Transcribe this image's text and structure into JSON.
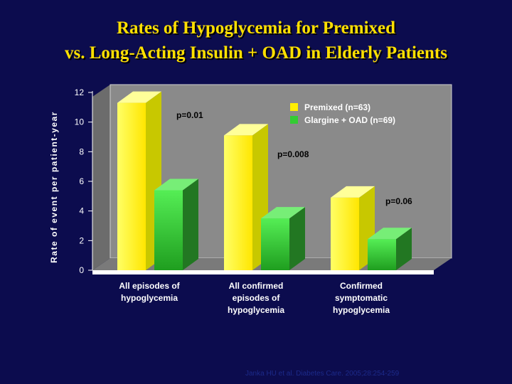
{
  "title_line1": "Rates of Hypoglycemia for Premixed",
  "title_line2": "vs. Long-Acting Insulin + OAD in Elderly Patients",
  "footnote": "Janka HU et al. Diabetes Care. 2005;28:254-259",
  "colors": {
    "background": "#0c0c4e",
    "title": "#ffe000",
    "plot_panel": "#8a8a8a",
    "premixed": "#ffee00",
    "glargine": "#33cc33"
  },
  "chart_data": {
    "type": "bar",
    "ylabel": "Rate of event per patient-year",
    "ylim": [
      0,
      12
    ],
    "yticks": [
      0,
      2,
      4,
      6,
      8,
      10,
      12
    ],
    "categories": [
      [
        "All episodes of",
        "hypoglycemia"
      ],
      [
        "All confirmed",
        "episodes of",
        "hypoglycemia"
      ],
      [
        "Confirmed",
        "symptomatic",
        "hypoglycemia"
      ]
    ],
    "series": [
      {
        "name": "Premixed (n=63)",
        "color": "#ffee00",
        "values": [
          11.3,
          9.1,
          4.9
        ]
      },
      {
        "name": "Glargine + OAD (n=69)",
        "color": "#33cc33",
        "values": [
          5.4,
          3.5,
          2.1
        ]
      }
    ],
    "annotations": [
      "p=0.01",
      "p=0.008",
      "p=0.06"
    ],
    "legend_position": "top-right",
    "grid": false
  }
}
